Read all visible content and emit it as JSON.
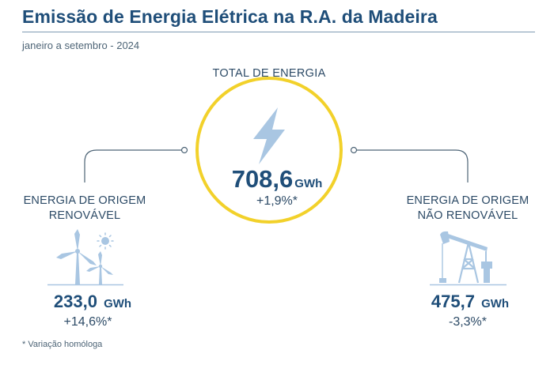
{
  "header": {
    "title": "Emissão de Energia Elétrica na R.A. da Madeira",
    "subtitle": "janeiro a setembro - 2024"
  },
  "total": {
    "label": "TOTAL DE ENERGIA",
    "value": "708,6",
    "unit": "GWh",
    "variation": "+1,9%*",
    "icon": "lightning-bolt-icon"
  },
  "renewable": {
    "label_line1": "ENERGIA DE ORIGEM",
    "label_line2": "RENOVÁVEL",
    "value": "233,0",
    "unit": "GWh",
    "variation": "+14,6%*",
    "icon": "wind-turbines-sun-icon"
  },
  "non_renewable": {
    "label_line1": "ENERGIA DE ORIGEM",
    "label_line2": "NÃO RENOVÁVEL",
    "value": "475,7",
    "unit": "GWh",
    "variation": "-3,3%*",
    "icon": "oil-pumpjack-icon"
  },
  "footnote": "* Variação homóloga",
  "colors": {
    "title": "#1f4e79",
    "circle_outline": "#f2d12a",
    "icon_blue": "#a9c6e2",
    "connector": "#4d6476"
  }
}
